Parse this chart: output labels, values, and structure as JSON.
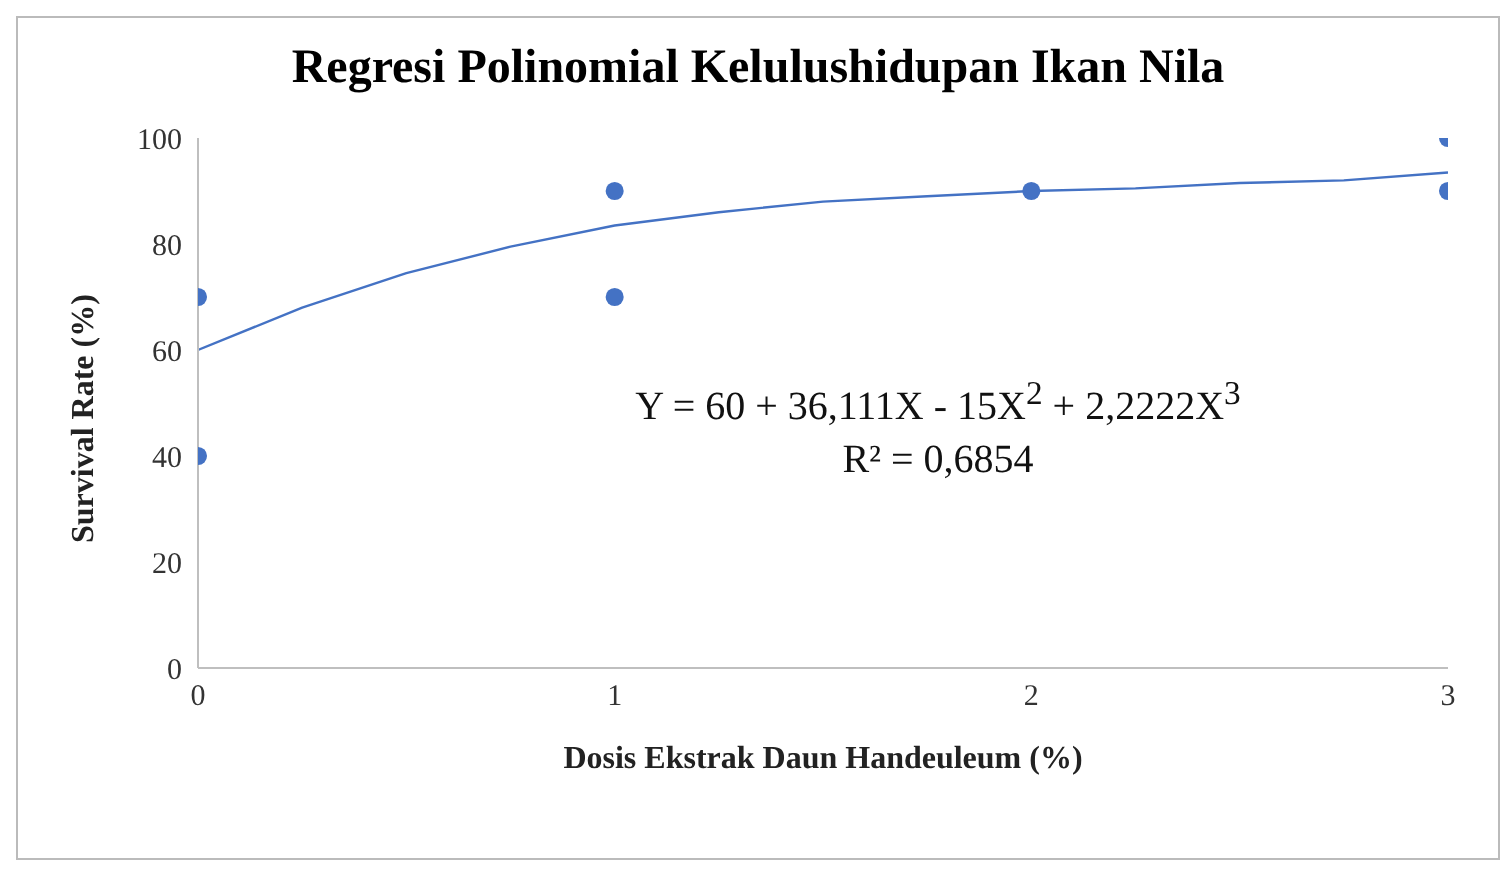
{
  "chart_data": {
    "type": "scatter",
    "title": "Regresi Polinomial Kelulushidupan Ikan Nila",
    "xlabel": "Dosis Ekstrak Daun Handeuleum (%)",
    "ylabel": "Survival Rate (%)",
    "series": [
      {
        "marker": "circle",
        "color": "#4472c4",
        "x": [
          0,
          0,
          1,
          1,
          2,
          3,
          3
        ],
        "values": [
          70,
          40,
          90,
          70,
          90,
          100,
          90
        ]
      },
      {
        "type": "line",
        "marker": "none",
        "color": "#4472c4",
        "x": [
          0,
          0.25,
          0.5,
          0.75,
          1,
          1.25,
          1.5,
          1.75,
          2,
          2.25,
          2.5,
          2.75,
          3
        ],
        "values": [
          60,
          68,
          74.5,
          79.5,
          83.5,
          86,
          88,
          89,
          90,
          90.5,
          91.5,
          92,
          93.5
        ]
      }
    ],
    "annotations": [
      "Y = 60 + 36,111X - 15X$^{2}$ + 2,2222X$^{3}$",
      "R² = 0,6854"
    ],
    "xlim": [
      0,
      3
    ],
    "xticks": [
      0,
      1,
      2,
      3
    ],
    "ylim": [
      0,
      100
    ],
    "yticks": [
      0,
      20,
      40,
      60,
      80,
      100
    ],
    "grid": false,
    "legend": false,
    "line_style": "solid"
  }
}
